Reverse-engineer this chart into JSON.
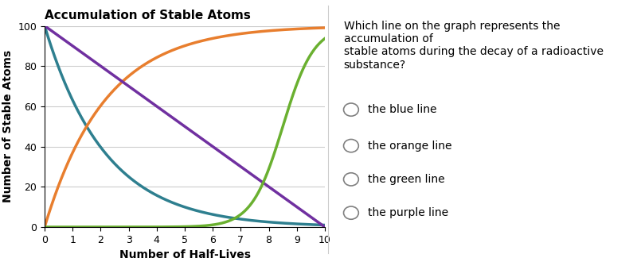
{
  "title": "Accumulation of Stable Atoms",
  "xlabel": "Number of Half-Lives",
  "ylabel": "Number of Stable Atoms",
  "xlim": [
    0,
    10
  ],
  "ylim": [
    0,
    100
  ],
  "xticks": [
    0,
    1,
    2,
    3,
    4,
    5,
    6,
    7,
    8,
    9,
    10
  ],
  "yticks": [
    0,
    20,
    40,
    60,
    80,
    100
  ],
  "background_color": "#ffffff",
  "grid_color": "#cccccc",
  "blue_color": "#2e7f8f",
  "orange_color": "#e87e2e",
  "green_color": "#6ab030",
  "purple_color": "#7030a0",
  "line_width": 2.5,
  "question_text": "Which line on the graph represents the accumulation of\nstable atoms during the decay of a radioactive\nsubstance?",
  "choices": [
    "the blue line",
    "the orange line",
    "the green line",
    "the purple line"
  ],
  "title_fontsize": 11,
  "axis_label_fontsize": 10,
  "tick_fontsize": 9,
  "question_fontsize": 10,
  "choice_fontsize": 10
}
